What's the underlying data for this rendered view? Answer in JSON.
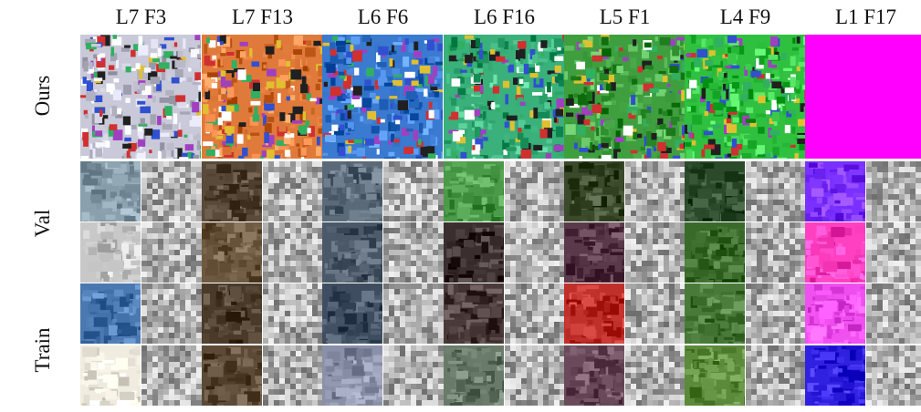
{
  "columns": [
    "L7 F3",
    "L7 F13",
    "L6 F6",
    "L6 F16",
    "L5 F1",
    "L4 F9",
    "L1 F17"
  ],
  "row_labels": {
    "ours": "Ours",
    "val": "Val",
    "train": "Train"
  },
  "palette": {
    "ours": [
      "#c9c9d9",
      "#e07a3a",
      "#3a7ad0",
      "#3ab07a",
      "#3f9f3f",
      "#30c040",
      "#ff00ff"
    ],
    "photo": [
      [
        "#8aa0ad",
        "#c8c8c8",
        "#4a78b0",
        "#f0ede0"
      ],
      [
        "#5a4a3a",
        "#6e5a40",
        "#4a3a2a",
        "#5c4a36"
      ],
      [
        "#5a6a78",
        "#4a5868",
        "#3e4e60",
        "#8a90a8"
      ],
      [
        "#4a9a4a",
        "#3a2e2e",
        "#4a3a3a",
        "#6a7a6a"
      ],
      [
        "#3a4a2a",
        "#5a3a4a",
        "#c0302a",
        "#6a4a5a"
      ],
      [
        "#2a4a2a",
        "#3a6a2a",
        "#4a7a3a",
        "#5a8a3a"
      ],
      [
        "#7a30ff",
        "#ff40c0",
        "#f050f0",
        "#3020e0"
      ]
    ]
  }
}
